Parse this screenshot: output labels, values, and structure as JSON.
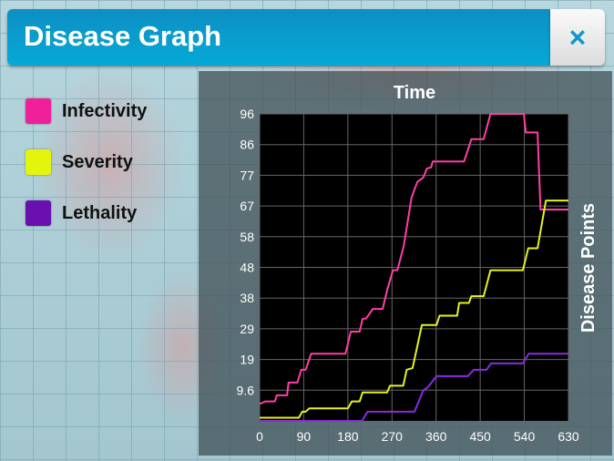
{
  "header": {
    "title": "Disease Graph",
    "close_label": "×"
  },
  "chart_data": {
    "type": "line",
    "title": "Time",
    "xlabel": "Time",
    "ylabel": "Disease Points",
    "xlim": [
      0,
      630
    ],
    "ylim": [
      0,
      96
    ],
    "xticks": [
      "0",
      "90",
      "180",
      "270",
      "360",
      "450",
      "540",
      "630"
    ],
    "xtick_values": [
      0,
      90,
      180,
      270,
      360,
      450,
      540,
      630
    ],
    "yticks": [
      "96",
      "86",
      "77",
      "67",
      "58",
      "48",
      "38",
      "29",
      "19",
      "9.6"
    ],
    "ytick_values": [
      96,
      86.4,
      76.8,
      67.2,
      57.6,
      48,
      38.4,
      28.8,
      19.2,
      9.6
    ],
    "grid": true,
    "legend_position": "left",
    "series": [
      {
        "name": "Infectivity",
        "color": "#ff3fa6",
        "points": [
          [
            0,
            5.3
          ],
          [
            12,
            6.1
          ],
          [
            31,
            6.1
          ],
          [
            35,
            8
          ],
          [
            56,
            8
          ],
          [
            59,
            12
          ],
          [
            77,
            12
          ],
          [
            85,
            16
          ],
          [
            94,
            16
          ],
          [
            105,
            21
          ],
          [
            175,
            21
          ],
          [
            186,
            27.9
          ],
          [
            204,
            27.9
          ],
          [
            210,
            31.9
          ],
          [
            217,
            32
          ],
          [
            231,
            35
          ],
          [
            251,
            35
          ],
          [
            261,
            41.4
          ],
          [
            272,
            47.1
          ],
          [
            281,
            47.1
          ],
          [
            294,
            54.7
          ],
          [
            310,
            69.9
          ],
          [
            322,
            74.8
          ],
          [
            334,
            76.1
          ],
          [
            341,
            78.9
          ],
          [
            350,
            79.3
          ],
          [
            353,
            81.1
          ],
          [
            417,
            81.1
          ],
          [
            432,
            88.1
          ],
          [
            457,
            88.1
          ],
          [
            471,
            96
          ],
          [
            539,
            96
          ],
          [
            543,
            90.2
          ],
          [
            567,
            90.2
          ],
          [
            573,
            66.1
          ],
          [
            630,
            66.1
          ]
        ]
      },
      {
        "name": "Severity",
        "color": "#e6f21f",
        "points": [
          [
            0,
            1
          ],
          [
            80,
            1
          ],
          [
            87,
            2.9
          ],
          [
            94,
            2.9
          ],
          [
            101,
            3.9
          ],
          [
            180,
            3.9
          ],
          [
            188,
            6.1
          ],
          [
            204,
            6.1
          ],
          [
            210,
            8.9
          ],
          [
            260,
            8.9
          ],
          [
            266,
            11
          ],
          [
            293,
            11
          ],
          [
            300,
            16
          ],
          [
            312,
            16.5
          ],
          [
            331,
            30
          ],
          [
            361,
            30
          ],
          [
            367,
            32.9
          ],
          [
            403,
            32.9
          ],
          [
            407,
            36.9
          ],
          [
            427,
            36.9
          ],
          [
            432,
            39
          ],
          [
            457,
            39
          ],
          [
            471,
            47.1
          ],
          [
            537,
            47.1
          ],
          [
            548,
            54
          ],
          [
            567,
            54
          ],
          [
            584,
            68.9
          ],
          [
            630,
            68.9
          ]
        ]
      },
      {
        "name": "Lethality",
        "color": "#8a2be2",
        "points": [
          [
            0,
            0
          ],
          [
            209,
            0
          ],
          [
            220,
            2.9
          ],
          [
            316,
            2.9
          ],
          [
            334,
            9.6
          ],
          [
            343,
            10.5
          ],
          [
            361,
            14
          ],
          [
            425,
            14
          ],
          [
            437,
            16
          ],
          [
            463,
            16
          ],
          [
            472,
            18
          ],
          [
            537,
            18
          ],
          [
            549,
            21
          ],
          [
            630,
            21
          ]
        ]
      }
    ]
  }
}
